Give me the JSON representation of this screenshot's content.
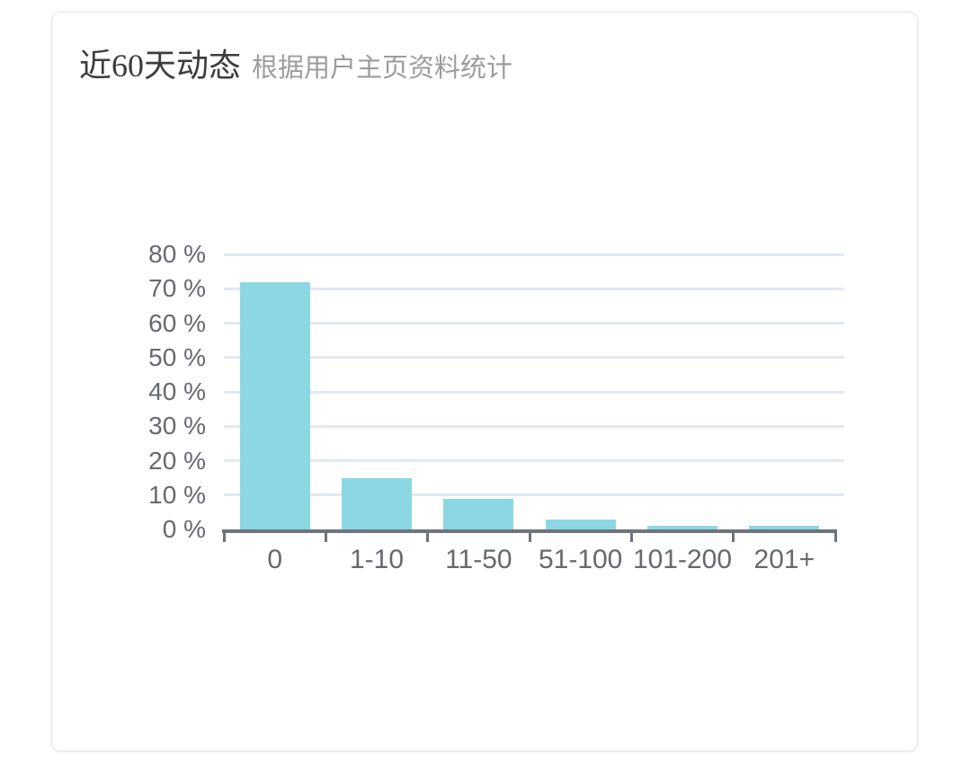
{
  "card": {
    "title": "近60天动态",
    "subtitle": "根据用户主页资料统计"
  },
  "chart_data": {
    "type": "bar",
    "title": "近60天动态",
    "subtitle": "根据用户主页资料统计",
    "categories": [
      "0",
      "1-10",
      "11-50",
      "51-100",
      "101-200",
      "201+"
    ],
    "values": [
      72,
      15,
      9,
      3,
      1,
      1
    ],
    "value_unit": "%",
    "xlabel": "",
    "ylabel": "",
    "ylim": [
      0,
      80
    ],
    "y_tick_step": 10,
    "y_tick_labels": [
      "0 %",
      "10 %",
      "20 %",
      "30 %",
      "40 %",
      "50 %",
      "60 %",
      "70 %",
      "80 %"
    ],
    "grid": true,
    "legend_position": "none",
    "bar_color": "#8BD8E4",
    "gridline_color": "#E3E8F1",
    "axis_color": "#6E747C",
    "tick_label_color": "#65696F"
  }
}
